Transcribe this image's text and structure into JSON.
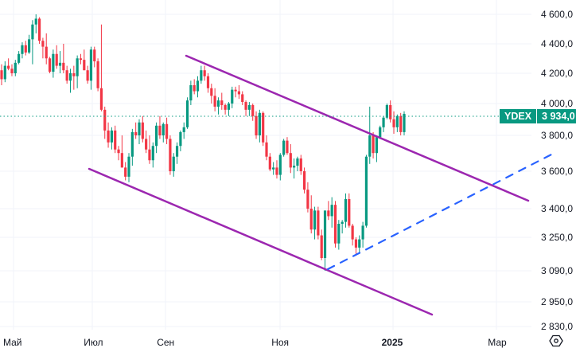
{
  "symbol": "YDEX",
  "last_price_label": "3 934,0",
  "colors": {
    "up": "#089981",
    "down": "#F23645",
    "trendline": "#9C27B0",
    "dashed_line": "#2962FF",
    "grid": "#F0F3FA",
    "price_line": "#089981"
  },
  "y_axis": {
    "labels": [
      "4 600,0",
      "4 400,0",
      "4 200,0",
      "4 000,0",
      "3 800,0",
      "3 600,0",
      "3 400,0",
      "3 250,0",
      "3 090,0",
      "2 950,0",
      "2 830,0"
    ]
  },
  "x_axis": {
    "labels": [
      "Май",
      "Июл",
      "Сен",
      "Ноя",
      "2025",
      "Мар"
    ]
  },
  "settings_icon": "hexagon-settings-icon",
  "chart_data": {
    "type": "candlestick",
    "title": "YDEX",
    "xlabel": "",
    "ylabel": "",
    "scale": "log",
    "ylim": [
      2830,
      4650
    ],
    "y_ticks": [
      4600,
      4400,
      4200,
      4000,
      3800,
      3600,
      3400,
      3250,
      3090,
      2950,
      2830
    ],
    "x_ticks": [
      "Май",
      "Июл",
      "Сен",
      "Ноя",
      "2025",
      "Мар"
    ],
    "last_price": 3934.0,
    "grid": true,
    "candles_ohlc_approx": [
      [
        4220,
        4260,
        4120,
        4160
      ],
      [
        4160,
        4280,
        4140,
        4250
      ],
      [
        4250,
        4300,
        4220,
        4230
      ],
      [
        4230,
        4260,
        4180,
        4200
      ],
      [
        4200,
        4290,
        4180,
        4270
      ],
      [
        4270,
        4350,
        4260,
        4330
      ],
      [
        4330,
        4410,
        4300,
        4390
      ],
      [
        4390,
        4420,
        4320,
        4340
      ],
      [
        4340,
        4460,
        4330,
        4430
      ],
      [
        4430,
        4560,
        4260,
        4530
      ],
      [
        4530,
        4600,
        4470,
        4570
      ],
      [
        4570,
        4580,
        4400,
        4420
      ],
      [
        4420,
        4440,
        4300,
        4380
      ],
      [
        4380,
        4470,
        4260,
        4300
      ],
      [
        4300,
        4310,
        4200,
        4210
      ],
      [
        4210,
        4360,
        4170,
        4330
      ],
      [
        4330,
        4390,
        4230,
        4250
      ],
      [
        4250,
        4350,
        4200,
        4270
      ],
      [
        4270,
        4400,
        4200,
        4220
      ],
      [
        4220,
        4250,
        4130,
        4150
      ],
      [
        4150,
        4230,
        4070,
        4200
      ],
      [
        4200,
        4250,
        4090,
        4180
      ],
      [
        4180,
        4320,
        4100,
        4300
      ],
      [
        4300,
        4330,
        4260,
        4290
      ],
      [
        4290,
        4360,
        4220,
        4220
      ],
      [
        4220,
        4250,
        4130,
        4150
      ],
      [
        4150,
        4380,
        4090,
        4360
      ],
      [
        4360,
        4380,
        4240,
        4280
      ],
      [
        4280,
        4300,
        4080,
        4100
      ],
      [
        4100,
        4530,
        3950,
        3960
      ],
      [
        3960,
        3980,
        3780,
        3830
      ],
      [
        3830,
        3880,
        3730,
        3760
      ],
      [
        3760,
        3850,
        3720,
        3830
      ],
      [
        3830,
        3860,
        3700,
        3720
      ],
      [
        3720,
        3740,
        3660,
        3700
      ],
      [
        3700,
        3800,
        3620,
        3620
      ],
      [
        3620,
        3650,
        3550,
        3570
      ],
      [
        3570,
        3700,
        3540,
        3680
      ],
      [
        3680,
        3840,
        3630,
        3820
      ],
      [
        3820,
        3880,
        3780,
        3800
      ],
      [
        3800,
        3900,
        3750,
        3880
      ],
      [
        3880,
        3920,
        3760,
        3780
      ],
      [
        3780,
        3830,
        3700,
        3720
      ],
      [
        3720,
        3800,
        3640,
        3660
      ],
      [
        3660,
        3760,
        3620,
        3740
      ],
      [
        3740,
        3880,
        3700,
        3860
      ],
      [
        3860,
        3920,
        3780,
        3800
      ],
      [
        3800,
        3880,
        3760,
        3870
      ],
      [
        3870,
        3910,
        3750,
        3780
      ],
      [
        3780,
        3800,
        3580,
        3600
      ],
      [
        3600,
        3700,
        3570,
        3680
      ],
      [
        3680,
        3760,
        3640,
        3740
      ],
      [
        3740,
        3830,
        3710,
        3820
      ],
      [
        3820,
        3880,
        3780,
        3850
      ],
      [
        3850,
        4040,
        3840,
        4020
      ],
      [
        4020,
        4150,
        3990,
        4120
      ],
      [
        4120,
        4160,
        4060,
        4080
      ],
      [
        4080,
        4180,
        4040,
        4150
      ],
      [
        4150,
        4250,
        4130,
        4220
      ],
      [
        4220,
        4250,
        4150,
        4180
      ],
      [
        4180,
        4200,
        4070,
        4100
      ],
      [
        4100,
        4130,
        4000,
        4050
      ],
      [
        4050,
        4100,
        3950,
        3980
      ],
      [
        3980,
        4040,
        3930,
        4020
      ],
      [
        4020,
        4070,
        3960,
        3990
      ],
      [
        3990,
        4000,
        3930,
        3960
      ],
      [
        3960,
        4010,
        3920,
        4000
      ],
      [
        4000,
        4110,
        3970,
        4090
      ],
      [
        4090,
        4110,
        4040,
        4080
      ],
      [
        4080,
        4120,
        4030,
        4060
      ],
      [
        4060,
        4080,
        3990,
        4010
      ],
      [
        4010,
        4020,
        3920,
        3960
      ],
      [
        3960,
        4010,
        3920,
        3990
      ],
      [
        3990,
        4000,
        3890,
        3920
      ],
      [
        3920,
        3950,
        3780,
        3800
      ],
      [
        3800,
        3960,
        3760,
        3940
      ],
      [
        3940,
        3950,
        3740,
        3760
      ],
      [
        3760,
        3800,
        3660,
        3680
      ],
      [
        3680,
        3700,
        3600,
        3610
      ],
      [
        3610,
        3650,
        3580,
        3620
      ],
      [
        3620,
        3660,
        3560,
        3580
      ],
      [
        3580,
        3700,
        3550,
        3690
      ],
      [
        3690,
        3780,
        3680,
        3770
      ],
      [
        3770,
        3790,
        3690,
        3700
      ],
      [
        3700,
        3750,
        3590,
        3620
      ],
      [
        3620,
        3670,
        3560,
        3630
      ],
      [
        3630,
        3680,
        3600,
        3670
      ],
      [
        3670,
        3690,
        3580,
        3600
      ],
      [
        3600,
        3620,
        3480,
        3500
      ],
      [
        3500,
        3540,
        3380,
        3400
      ],
      [
        3400,
        3470,
        3270,
        3290
      ],
      [
        3290,
        3410,
        3240,
        3390
      ],
      [
        3390,
        3410,
        3240,
        3260
      ],
      [
        3260,
        3290,
        3140,
        3150
      ],
      [
        3150,
        3390,
        3090,
        3390
      ],
      [
        3390,
        3440,
        3340,
        3360
      ],
      [
        3360,
        3460,
        3300,
        3420
      ],
      [
        3420,
        3440,
        3200,
        3220
      ],
      [
        3220,
        3340,
        3190,
        3320
      ],
      [
        3320,
        3340,
        3270,
        3330
      ],
      [
        3330,
        3480,
        3300,
        3450
      ],
      [
        3450,
        3480,
        3300,
        3310
      ],
      [
        3310,
        3320,
        3210,
        3240
      ],
      [
        3240,
        3250,
        3170,
        3200
      ],
      [
        3200,
        3260,
        3170,
        3240
      ],
      [
        3240,
        3330,
        3200,
        3310
      ],
      [
        3310,
        3690,
        3300,
        3680
      ],
      [
        3680,
        3980,
        3640,
        3800
      ],
      [
        3800,
        3820,
        3670,
        3700
      ],
      [
        3700,
        3800,
        3650,
        3790
      ],
      [
        3790,
        3860,
        3780,
        3850
      ],
      [
        3850,
        3920,
        3820,
        3910
      ],
      [
        3910,
        4000,
        3900,
        3990
      ],
      [
        3990,
        4020,
        3880,
        3900
      ],
      [
        3900,
        3950,
        3810,
        3850
      ],
      [
        3850,
        3930,
        3820,
        3920
      ],
      [
        3920,
        3940,
        3800,
        3820
      ],
      [
        3820,
        3950,
        3800,
        3934
      ]
    ],
    "annotations": [
      {
        "type": "trendline",
        "name": "upper channel",
        "color": "#9C27B0",
        "from": [
          "~Aug 15",
          4310
        ],
        "to": [
          "~Mar 20",
          3420
        ]
      },
      {
        "type": "trendline",
        "name": "lower channel",
        "color": "#9C27B0",
        "from": [
          "~Jun 25",
          3620
        ],
        "to": [
          "~Feb 10",
          2880
        ]
      },
      {
        "type": "dashed-line",
        "name": "support trend",
        "color": "#2962FF",
        "from": [
          "~Dec 5",
          3090
        ],
        "to": [
          "~Mar 30",
          3690
        ]
      },
      {
        "type": "price-line",
        "value": 3934.0,
        "label": "YDEX 3 934,0"
      }
    ]
  }
}
